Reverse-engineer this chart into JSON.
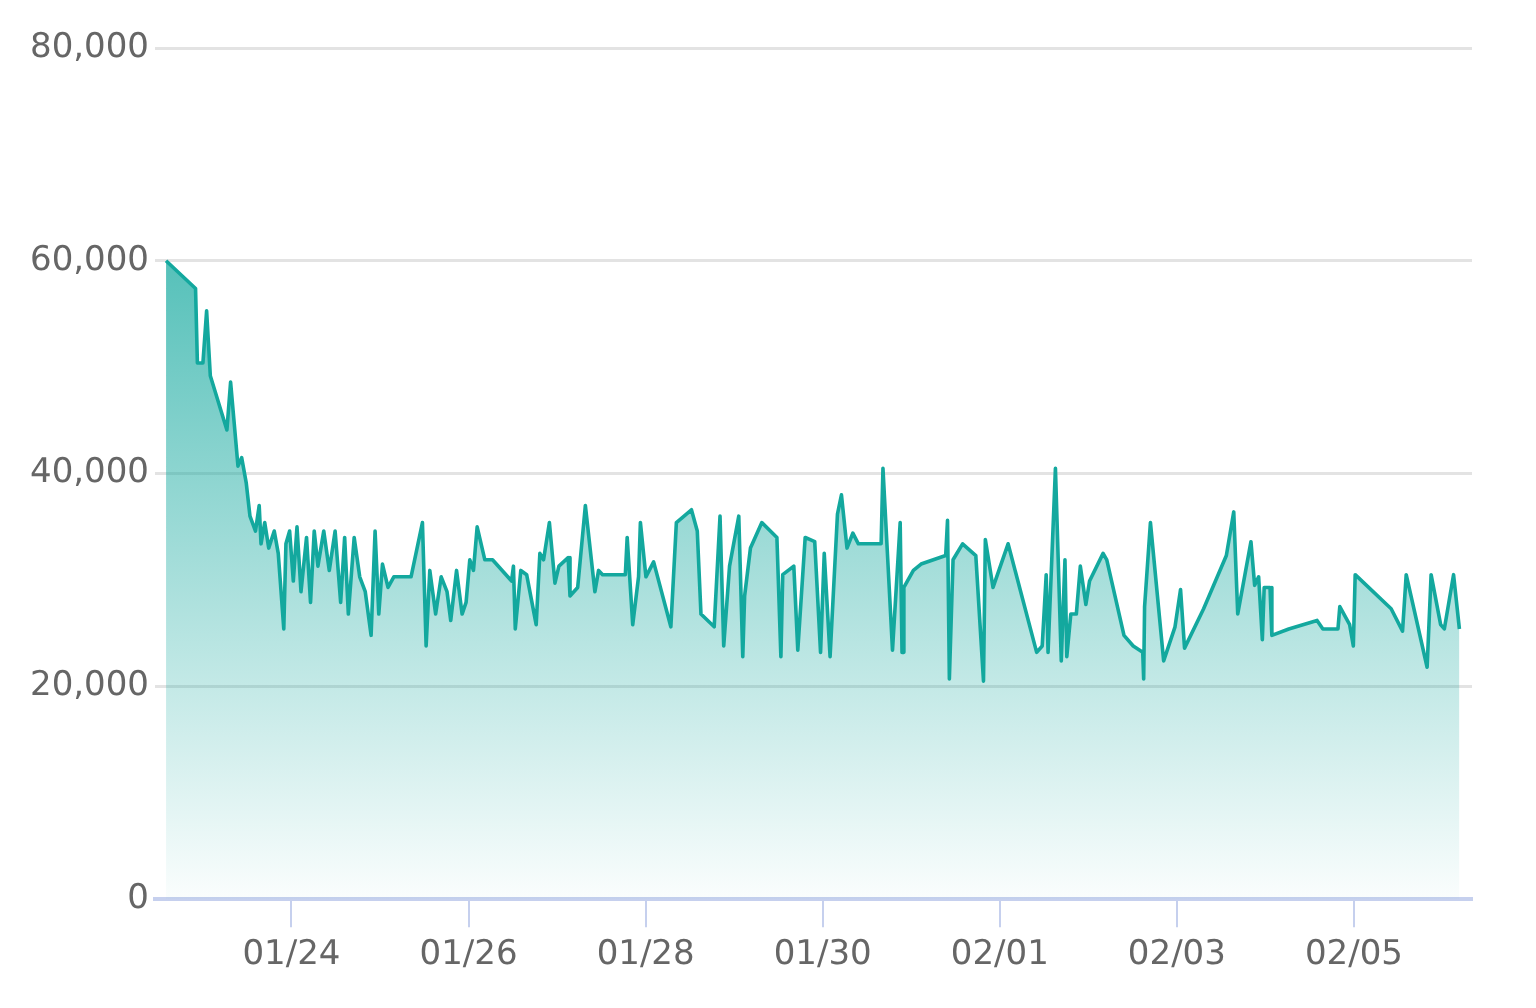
{
  "chart_data": {
    "type": "area",
    "x": [
      "--01-22T14:00",
      "--01-22T22:00",
      "--01-22T22:30",
      "--01-23T00:00",
      "--01-23T01:00",
      "--01-23T02:00",
      "--01-23T06:30",
      "--01-23T07:30",
      "--01-23T09:30",
      "--01-23T10:30",
      "--01-23T11:45",
      "--01-23T12:45",
      "--01-23T14:15",
      "--01-23T15:15",
      "--01-23T15:45",
      "--01-23T16:45",
      "--01-23T17:50",
      "--01-23T19:20",
      "--01-23T20:25",
      "--01-23T21:55",
      "--01-23T22:30",
      "--01-23T23:30",
      "--01-24T00:30",
      "--01-24T01:30",
      "--01-24T02:35",
      "--01-24T04:05",
      "--01-24T05:10",
      "--01-24T06:10",
      "--01-24T07:10",
      "--01-24T08:45",
      "--01-24T10:15",
      "--01-24T11:50",
      "--01-24T13:20",
      "--01-24T14:25",
      "--01-24T15:25",
      "--01-24T17:00",
      "--01-24T18:30",
      "--01-24T20:00",
      "--01-24T21:35",
      "--01-24T22:40",
      "--01-24T23:40",
      "--01-25T00:40",
      "--01-25T02:10",
      "--01-25T03:45",
      "--01-25T08:25",
      "--01-25T11:30",
      "--01-25T12:30",
      "--01-25T13:30",
      "--01-25T15:05",
      "--01-25T16:35",
      "--01-25T18:10",
      "--01-25T19:10",
      "--01-25T20:45",
      "--01-25T22:15",
      "--01-25T23:20",
      "--01-26T00:20",
      "--01-26T01:20",
      "--01-26T02:20",
      "--01-26T04:25",
      "--01-26T06:30",
      "--01-26T11:40",
      "--01-26T12:10",
      "--01-26T12:40",
      "--01-26T14:10",
      "--01-26T15:45",
      "--01-26T18:20",
      "--01-26T19:20",
      "--01-26T20:20",
      "--01-26T21:55",
      "--01-26T23:25",
      "--01-27T00:30",
      "--01-27T03:00",
      "--01-27T03:30",
      "--01-27T05:35",
      "--01-27T07:40",
      "--01-27T10:15",
      "--01-27T11:15",
      "--01-27T12:20",
      "--01-27T18:30",
      "--01-27T19:00",
      "--01-27T20:30",
      "--01-27T22:05",
      "--01-27T22:35",
      "--01-28T00:05",
      "--01-28T02:10",
      "--01-28T06:50",
      "--01-28T08:20",
      "--01-28T12:25",
      "--01-28T14:00",
      "--01-28T15:00",
      "--01-28T18:35",
      "--01-28T20:10",
      "--01-28T21:10",
      "--01-28T22:45",
      "--01-29T01:15",
      "--01-29T02:20",
      "--01-29T02:50",
      "--01-29T04:25",
      "--01-29T07:30",
      "--01-29T11:35",
      "--01-29T12:40",
      "--01-29T13:10",
      "--01-29T16:10",
      "--01-29T17:15",
      "--01-29T19:15",
      "--01-29T21:50",
      "--01-29T23:25",
      "--01-30T00:25",
      "--01-30T02:00",
      "--01-30T04:00",
      "--01-30T05:05",
      "--01-30T06:35",
      "--01-30T08:10",
      "--01-30T09:40",
      "--01-30T15:50",
      "--01-30T16:20",
      "--01-30T18:55",
      "--01-30T21:00",
      "--01-30T21:30",
      "--01-30T22:00",
      "--01-31T00:35",
      "--01-31T02:40",
      "--01-31T09:20",
      "--01-31T09:50",
      "--01-31T10:20",
      "--01-31T11:20",
      "--01-31T13:55",
      "--01-31T17:30",
      "--01-31T19:35",
      "--01-31T20:05",
      "--01-31T22:10",
      "--02-01T02:15",
      "--02-01T10:00",
      "--02-01T11:30",
      "--02-01T12:35",
      "--02-01T13:05",
      "--02-01T15:05",
      "--02-01T16:40",
      "--02-01T17:40",
      "--02-01T18:10",
      "--02-01T19:15",
      "--02-01T20:45",
      "--02-01T21:50",
      "--02-01T23:20",
      "--02-02T00:20",
      "--02-02T04:00",
      "--02-02T05:00",
      "--02-02T09:40",
      "--02-02T12:10",
      "--02-02T14:45",
      "--02-02T15:00",
      "--02-02T15:15",
      "--02-02T16:50",
      "--02-02T20:25",
      "--02-02T23:30",
      "--02-03T01:00",
      "--02-03T02:05",
      "--02-03T07:15",
      "--02-03T13:25",
      "--02-03T15:25",
      "--02-03T16:30",
      "--02-03T20:05",
      "--02-03T21:05",
      "--02-03T22:10",
      "--02-03T23:10",
      "--02-03T23:40",
      "--02-04T01:15",
      "--02-04T01:45",
      "--02-04T06:20",
      "--02-04T14:00",
      "--02-04T15:35",
      "--02-04T19:40",
      "--02-04T20:10",
      "--02-04T22:50",
      "--02-04T23:50",
      "--02-05T00:20",
      "--02-05T10:05",
      "--02-05T13:10",
      "--02-05T14:10",
      "--02-05T19:50",
      "--02-05T20:55",
      "--02-05T23:30",
      "--02-06T00:30",
      "--02-06T03:00",
      "--02-06T04:35"
    ],
    "series": [
      {
        "color": "#13a89e",
        "values": [
          60000,
          57400,
          50400,
          50400,
          55300,
          49200,
          44100,
          48600,
          40700,
          41500,
          39100,
          36000,
          34600,
          37000,
          33400,
          35400,
          33000,
          34600,
          32500,
          25400,
          33400,
          34600,
          29900,
          35000,
          28900,
          34000,
          27900,
          34600,
          31300,
          34600,
          30900,
          34600,
          27900,
          34000,
          26800,
          34000,
          30300,
          28900,
          24800,
          34600,
          26800,
          31500,
          29300,
          30300,
          30300,
          35400,
          23800,
          30900,
          26800,
          30300,
          28900,
          26200,
          30900,
          26800,
          27900,
          31900,
          30900,
          35000,
          31900,
          31900,
          29900,
          31300,
          25400,
          30900,
          30500,
          25800,
          32500,
          31900,
          35400,
          29700,
          31300,
          32100,
          28500,
          29300,
          37000,
          28900,
          30900,
          30500,
          30500,
          34000,
          25800,
          30300,
          35400,
          30300,
          31700,
          25600,
          35400,
          36600,
          34600,
          26800,
          25600,
          36000,
          23800,
          31300,
          36000,
          22800,
          28500,
          33000,
          35400,
          34000,
          22800,
          30500,
          31300,
          23400,
          34000,
          33600,
          23200,
          32500,
          22800,
          36200,
          38000,
          33000,
          34400,
          33400,
          33400,
          40500,
          23400,
          35400,
          23200,
          29300,
          30900,
          31500,
          32300,
          35600,
          20700,
          31900,
          33400,
          32300,
          20500,
          33800,
          29300,
          33400,
          23200,
          23800,
          30500,
          23200,
          40500,
          22400,
          31900,
          22800,
          26800,
          26800,
          31300,
          27700,
          29900,
          32500,
          31900,
          24800,
          23800,
          23200,
          20700,
          27500,
          35400,
          22400,
          25600,
          29100,
          23600,
          27300,
          32300,
          36400,
          26800,
          33600,
          29500,
          30300,
          24400,
          29300,
          29300,
          24800,
          25400,
          26200,
          25400,
          25400,
          27500,
          25800,
          23800,
          30500,
          27300,
          25200,
          30500,
          21800,
          30500,
          25800,
          25400,
          30500,
          25400
        ]
      }
    ],
    "xlim": [
      "--01-22T11:00",
      "--02-06T08:00"
    ],
    "xticks": [
      {
        "value": "--01-24",
        "label": "01/24"
      },
      {
        "value": "--01-26",
        "label": "01/26"
      },
      {
        "value": "--01-28",
        "label": "01/28"
      },
      {
        "value": "--01-30",
        "label": "01/30"
      },
      {
        "value": "--02-01",
        "label": "02/01"
      },
      {
        "value": "--02-03",
        "label": "02/03"
      },
      {
        "value": "--02-05",
        "label": "02/05"
      }
    ],
    "ylim": [
      0,
      80000
    ],
    "yticks": [
      {
        "value": 0,
        "label": "0"
      },
      {
        "value": 20000,
        "label": "20,000"
      },
      {
        "value": 40000,
        "label": "40,000"
      },
      {
        "value": 60000,
        "label": "60,000"
      },
      {
        "value": 80000,
        "label": "80,000"
      }
    ],
    "grid": "y",
    "marker": "none",
    "line_style": "solid"
  }
}
